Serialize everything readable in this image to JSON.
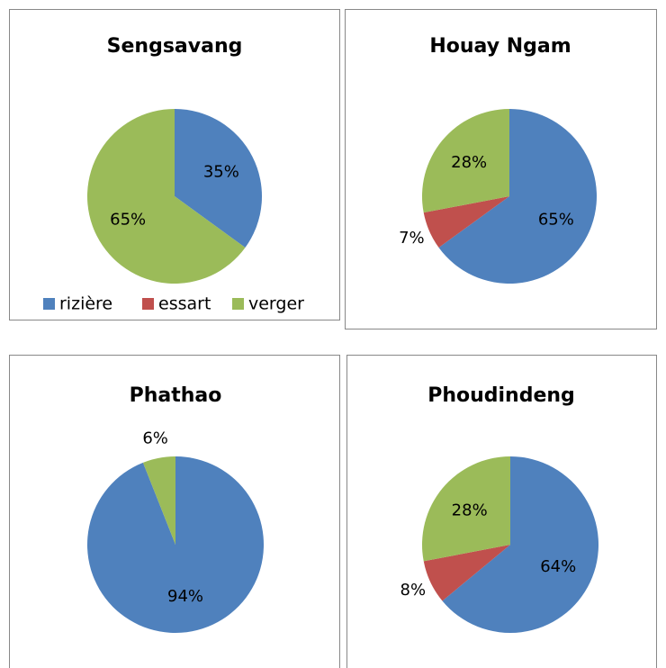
{
  "chart_data": [
    {
      "type": "pie",
      "title": "Sengsavang",
      "categories": [
        "rizière",
        "essart",
        "verger"
      ],
      "colors": [
        "#4f81bd",
        "#c0504d",
        "#9bbb59"
      ],
      "values": [
        35,
        0,
        65
      ],
      "value_labels": [
        "35%",
        null,
        "65%"
      ],
      "legend": true
    },
    {
      "type": "pie",
      "title": "Houay Ngam",
      "values": [
        65,
        7,
        28
      ],
      "value_labels": [
        "65%",
        "7%",
        "28%"
      ]
    },
    {
      "type": "pie",
      "title": "Phathao",
      "values": [
        94,
        0,
        6
      ],
      "value_labels": [
        "94%",
        null,
        "6%"
      ]
    },
    {
      "type": "pie",
      "title": "Phoudindeng",
      "values": [
        64,
        8,
        28
      ],
      "value_labels": [
        "64%",
        "8%",
        "28%"
      ]
    }
  ]
}
